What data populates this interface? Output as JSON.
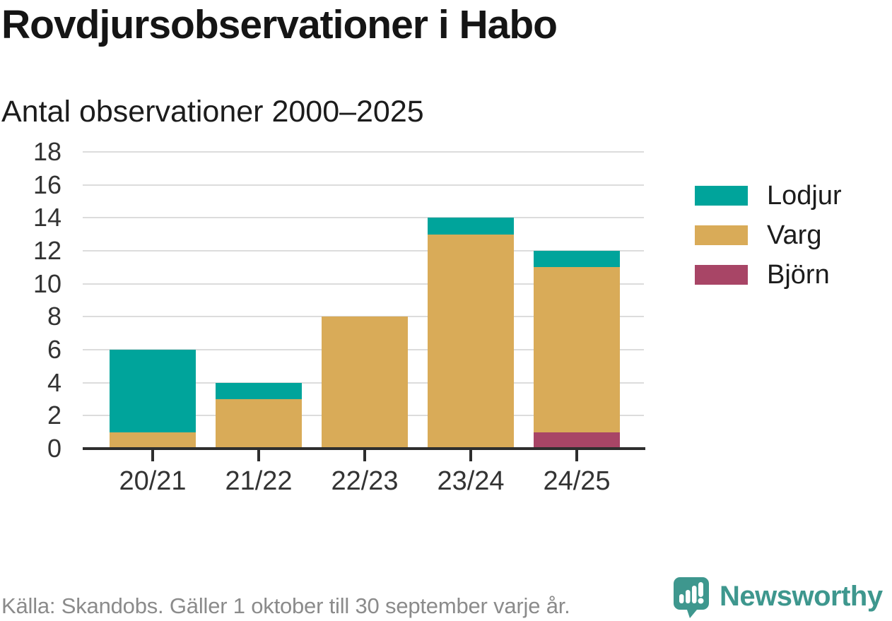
{
  "title": "Rovdjursobservationer i Habo",
  "subtitle": "Antal observationer 2000–2025",
  "footer": {
    "source": "Källa: Skandobs. Gäller 1 oktober till 30 september varje år."
  },
  "brand": {
    "name": "Newsworthy",
    "color": "#3E978E"
  },
  "icons": {
    "brand": "newsworthy-speech-bubble-bar-chart-exclamation-icon"
  },
  "colors": {
    "grid": "#dcdcdc",
    "axis": "#2e2e2e",
    "tick_label": "#333333",
    "text": "#1c1c1c",
    "muted": "#8b8b8b",
    "background": "#ffffff"
  },
  "chart_data": {
    "type": "bar",
    "stacked": true,
    "title": "Rovdjursobservationer i Habo",
    "subtitle": "Antal observationer 2000–2025",
    "categories": [
      "20/21",
      "21/22",
      "22/23",
      "23/24",
      "24/25"
    ],
    "series": [
      {
        "name": "Lodjur",
        "color": "#00A49B",
        "values": [
          5,
          1,
          0,
          1,
          1
        ]
      },
      {
        "name": "Varg",
        "color": "#D9AB58",
        "values": [
          1,
          3,
          8,
          13,
          10
        ]
      },
      {
        "name": "Björn",
        "color": "#A84566",
        "values": [
          0,
          0,
          0,
          0,
          1
        ]
      }
    ],
    "stack_order_bottom_to_top": [
      "Björn",
      "Varg",
      "Lodjur"
    ],
    "totals": [
      6,
      4,
      8,
      14,
      12
    ],
    "xlabel": "",
    "ylabel": "",
    "ylim": [
      0,
      18
    ],
    "ytick_step": 2,
    "grid": true,
    "legend_position": "right"
  }
}
